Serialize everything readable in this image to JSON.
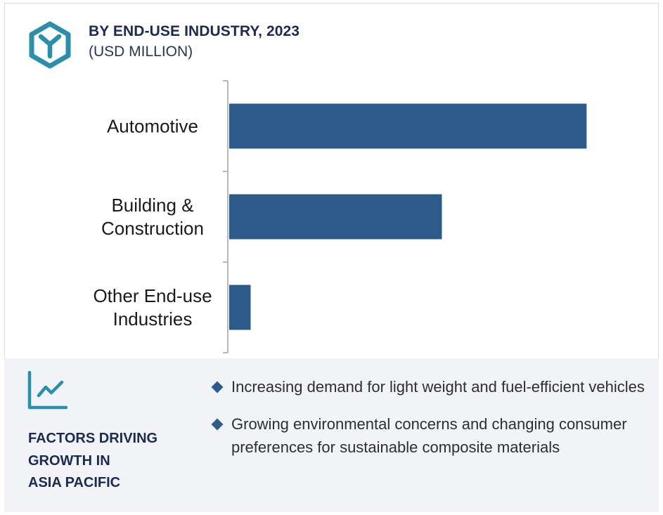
{
  "header": {
    "title": "BY END-USE INDUSTRY, 2023",
    "subtitle": "(USD MILLION)",
    "logo_icon": "hexagon-y-logo-icon"
  },
  "colors": {
    "bar": "#2c5b89",
    "title": "#1d2a4f",
    "accent": "#2a8fa8",
    "footer_bg": "#f2f3f7"
  },
  "chart_data": {
    "type": "bar",
    "orientation": "horizontal",
    "categories": [
      [
        "Automotive"
      ],
      [
        "Building &",
        "Construction"
      ],
      [
        "Other End-use",
        "Industries"
      ]
    ],
    "values": [
      100,
      59.5,
      6
    ],
    "value_scale": "relative (no axis values printed)",
    "xlim": [
      0,
      120
    ],
    "title": "BY END-USE INDUSTRY, 2023",
    "subtitle": "(USD MILLION)",
    "xlabel": "",
    "ylabel": "",
    "grid": false,
    "legend": "none"
  },
  "footer": {
    "icon": "trend-line-chart-icon",
    "title_lines": [
      "FACTORS DRIVING",
      "GROWTH IN",
      "ASIA PACIFIC"
    ],
    "bullets": [
      "Increasing demand for light weight and fuel-efficient vehicles",
      "Growing environmental concerns and changing consumer preferences for sustainable composite materials"
    ]
  }
}
